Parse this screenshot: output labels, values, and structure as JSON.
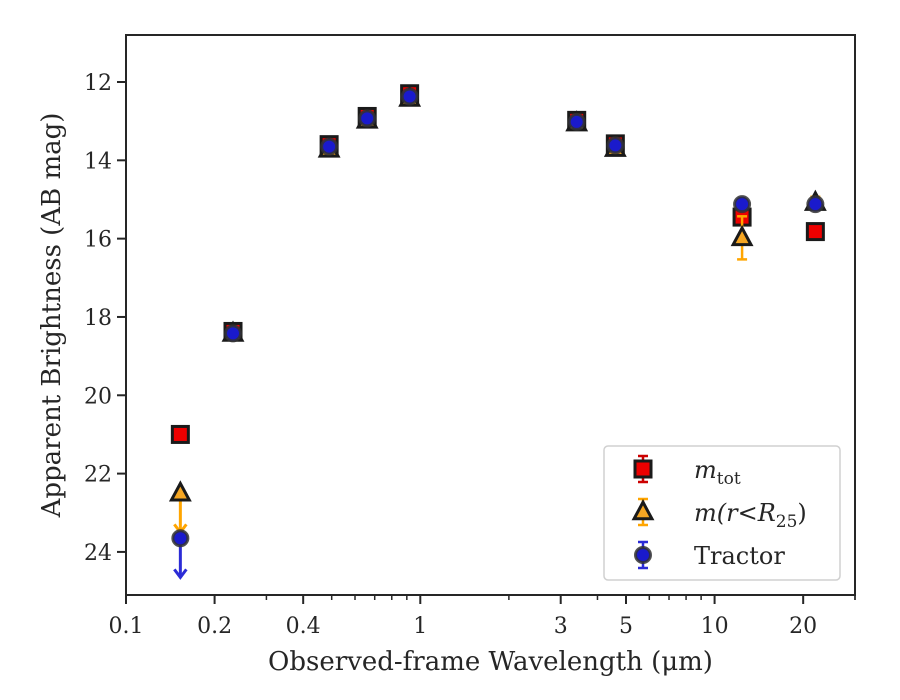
{
  "chart_data": {
    "type": "scatter",
    "xlabel": "Observed-frame Wavelength (μm)",
    "ylabel": "Apparent Brightness (AB mag)",
    "x_scale": "log",
    "xlim": [
      0.1,
      30
    ],
    "ylim": [
      25.1,
      10.8
    ],
    "y_inverted": true,
    "grid": false,
    "legend_position": "lower-right",
    "x_ticks": [
      {
        "value": 0.1,
        "label": "0.1"
      },
      {
        "value": 0.2,
        "label": "0.2"
      },
      {
        "value": 0.4,
        "label": "0.4"
      },
      {
        "value": 1,
        "label": "1"
      },
      {
        "value": 3,
        "label": "3"
      },
      {
        "value": 5,
        "label": "5"
      },
      {
        "value": 10,
        "label": "10"
      },
      {
        "value": 20,
        "label": "20"
      }
    ],
    "y_ticks": [
      {
        "value": 12,
        "label": "12"
      },
      {
        "value": 14,
        "label": "14"
      },
      {
        "value": 16,
        "label": "16"
      },
      {
        "value": 18,
        "label": "18"
      },
      {
        "value": 20,
        "label": "20"
      },
      {
        "value": 22,
        "label": "22"
      },
      {
        "value": 24,
        "label": "24"
      }
    ],
    "series": [
      {
        "name": "m_tot",
        "legend_label": "m",
        "legend_sub": "tot",
        "marker": "square",
        "face_color": "#ee0000",
        "edge_color": "#1a1a1a",
        "error_color": "#cc0000",
        "points": [
          {
            "x": 0.153,
            "y": 21.0,
            "err": 0.15
          },
          {
            "x": 0.231,
            "y": 18.37,
            "err": 0.05
          },
          {
            "x": 0.49,
            "y": 13.6,
            "err": 0.2
          },
          {
            "x": 0.66,
            "y": 12.88,
            "err": 0.2
          },
          {
            "x": 0.92,
            "y": 12.3,
            "err": 0.2
          },
          {
            "x": 3.4,
            "y": 12.98,
            "err": 0.1
          },
          {
            "x": 4.6,
            "y": 13.58,
            "err": 0.1
          },
          {
            "x": 12.4,
            "y": 15.45,
            "err": 0.12
          },
          {
            "x": 22.0,
            "y": 15.82,
            "err": 0.15
          }
        ]
      },
      {
        "name": "m(r<R25)",
        "legend_label": "m(r<R",
        "legend_sub": "25",
        "legend_tail": ")",
        "marker": "triangle",
        "face_color": "#f5a623",
        "edge_color": "#1a1a1a",
        "error_color": "#ffa500",
        "points": [
          {
            "x": 0.153,
            "y": 22.5,
            "upper_limit": true,
            "arrow_to": 23.5
          },
          {
            "x": 0.231,
            "y": 18.42,
            "err": 0.05
          },
          {
            "x": 0.49,
            "y": 13.72,
            "err": 0.1
          },
          {
            "x": 0.66,
            "y": 12.98,
            "err": 0.1
          },
          {
            "x": 0.92,
            "y": 12.42,
            "err": 0.1
          },
          {
            "x": 3.4,
            "y": 13.05,
            "err": 0.1
          },
          {
            "x": 4.6,
            "y": 13.7,
            "err": 0.1
          },
          {
            "x": 12.4,
            "y": 15.98,
            "err": 0.55
          },
          {
            "x": 22.0,
            "y": 15.08,
            "err": 0.15
          }
        ]
      },
      {
        "name": "Tractor",
        "legend_label": "Tractor",
        "marker": "circle",
        "face_color": "#1a1acc",
        "edge_color": "#333333",
        "error_color": "#2b2bd6",
        "points": [
          {
            "x": 0.153,
            "y": 23.65,
            "upper_limit": true,
            "arrow_to": 24.65
          },
          {
            "x": 0.231,
            "y": 18.42,
            "err": 0.05
          },
          {
            "x": 0.49,
            "y": 13.65,
            "err": 0.1
          },
          {
            "x": 0.66,
            "y": 12.93,
            "err": 0.1
          },
          {
            "x": 0.92,
            "y": 12.37,
            "err": 0.1
          },
          {
            "x": 3.4,
            "y": 13.02,
            "err": 0.1
          },
          {
            "x": 4.6,
            "y": 13.62,
            "err": 0.1
          },
          {
            "x": 12.4,
            "y": 15.12,
            "err": 0.1
          },
          {
            "x": 22.0,
            "y": 15.12,
            "err": 0.1
          }
        ]
      }
    ]
  }
}
